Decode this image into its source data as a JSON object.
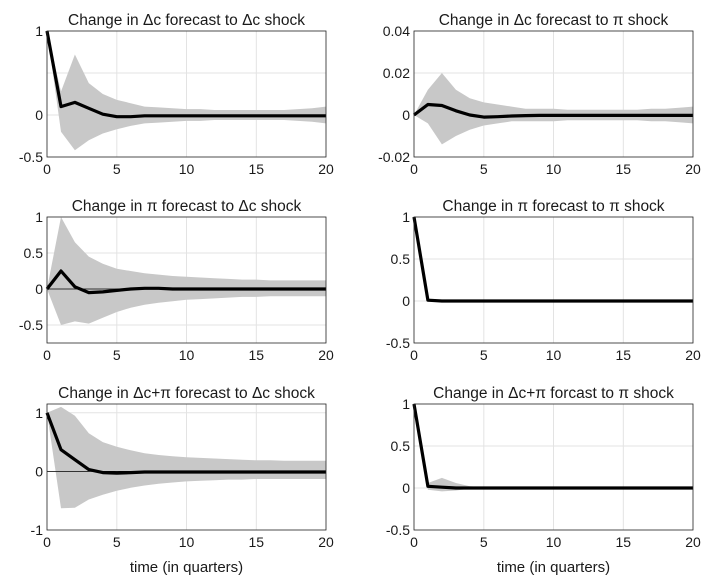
{
  "chart_data": [
    {
      "type": "line",
      "title": "Change in Δc forecast to Δc shock",
      "xlabel": "",
      "xlim": [
        0,
        20
      ],
      "ylim": [
        -0.5,
        1
      ],
      "xticks": [
        0,
        5,
        10,
        15,
        20
      ],
      "yticks": [
        -0.5,
        0,
        0.5,
        1
      ],
      "ytick_labels": [
        "-0.5",
        "0",
        "",
        "1"
      ],
      "grid": true,
      "zero_line": false,
      "x": [
        0,
        1,
        2,
        3,
        4,
        5,
        6,
        7,
        8,
        9,
        10,
        11,
        12,
        13,
        14,
        15,
        16,
        17,
        18,
        19,
        20
      ],
      "series": [
        {
          "values": [
            1.0,
            0.1,
            0.15,
            0.08,
            0.01,
            -0.02,
            -0.02,
            -0.01,
            -0.01,
            -0.01,
            -0.01,
            -0.01,
            -0.01,
            -0.01,
            -0.01,
            -0.01,
            -0.01,
            -0.01,
            -0.01,
            -0.01,
            -0.01
          ]
        }
      ],
      "band": {
        "upper": [
          1.0,
          0.28,
          0.72,
          0.38,
          0.25,
          0.18,
          0.14,
          0.1,
          0.09,
          0.08,
          0.07,
          0.07,
          0.06,
          0.06,
          0.06,
          0.06,
          0.06,
          0.06,
          0.07,
          0.08,
          0.1
        ],
        "lower": [
          1.0,
          -0.2,
          -0.42,
          -0.3,
          -0.22,
          -0.17,
          -0.13,
          -0.1,
          -0.09,
          -0.08,
          -0.07,
          -0.07,
          -0.06,
          -0.06,
          -0.06,
          -0.06,
          -0.06,
          -0.06,
          -0.07,
          -0.08,
          -0.1
        ]
      }
    },
    {
      "type": "line",
      "title": "Change in Δc forecast to π shock",
      "xlabel": "",
      "xlim": [
        0,
        20
      ],
      "ylim": [
        -0.02,
        0.04
      ],
      "xticks": [
        0,
        5,
        10,
        15,
        20
      ],
      "yticks": [
        -0.02,
        0,
        0.02,
        0.04
      ],
      "ytick_labels": [
        "-0.02",
        "0",
        "0.02",
        "0.04"
      ],
      "grid": true,
      "zero_line": false,
      "x": [
        0,
        1,
        2,
        3,
        4,
        5,
        6,
        7,
        8,
        9,
        10,
        11,
        12,
        13,
        14,
        15,
        16,
        17,
        18,
        19,
        20
      ],
      "series": [
        {
          "values": [
            0.0,
            0.005,
            0.0045,
            0.002,
            0.0,
            -0.001,
            -0.0008,
            -0.0005,
            -0.0003,
            -0.0002,
            -0.0002,
            -0.0002,
            -0.0002,
            -0.0002,
            -0.0002,
            -0.0002,
            -0.0002,
            -0.0002,
            -0.0002,
            -0.0002,
            -0.0002
          ]
        }
      ],
      "band": {
        "upper": [
          0.0,
          0.012,
          0.02,
          0.012,
          0.008,
          0.006,
          0.005,
          0.004,
          0.003,
          0.003,
          0.003,
          0.0025,
          0.0025,
          0.0025,
          0.0025,
          0.0025,
          0.0025,
          0.003,
          0.003,
          0.0035,
          0.004
        ],
        "lower": [
          0.0,
          -0.004,
          -0.014,
          -0.01,
          -0.007,
          -0.005,
          -0.004,
          -0.003,
          -0.003,
          -0.003,
          -0.003,
          -0.0025,
          -0.0025,
          -0.0025,
          -0.0025,
          -0.0025,
          -0.0025,
          -0.003,
          -0.003,
          -0.0035,
          -0.004
        ]
      }
    },
    {
      "type": "line",
      "title": "Change in π forecast to Δc shock",
      "xlabel": "",
      "xlim": [
        0,
        20
      ],
      "ylim": [
        -0.75,
        1
      ],
      "xticks": [
        0,
        5,
        10,
        15,
        20
      ],
      "yticks": [
        -0.5,
        0,
        0.5,
        1
      ],
      "ytick_labels": [
        "-0.5",
        "0",
        "0.5",
        "1"
      ],
      "grid": true,
      "zero_line": true,
      "x": [
        0,
        1,
        2,
        3,
        4,
        5,
        6,
        7,
        8,
        9,
        10,
        11,
        12,
        13,
        14,
        15,
        16,
        17,
        18,
        19,
        20
      ],
      "series": [
        {
          "values": [
            0.0,
            0.25,
            0.03,
            -0.05,
            -0.04,
            -0.02,
            0.0,
            0.01,
            0.01,
            0.0,
            0.0,
            0.0,
            0.0,
            0.0,
            0.0,
            0.0,
            0.0,
            0.0,
            0.0,
            0.0,
            0.0
          ]
        }
      ],
      "band": {
        "upper": [
          0.0,
          1.0,
          0.65,
          0.45,
          0.35,
          0.28,
          0.25,
          0.22,
          0.2,
          0.18,
          0.17,
          0.16,
          0.15,
          0.14,
          0.13,
          0.13,
          0.12,
          0.12,
          0.12,
          0.12,
          0.12
        ],
        "lower": [
          0.0,
          -0.5,
          -0.45,
          -0.48,
          -0.4,
          -0.32,
          -0.26,
          -0.22,
          -0.19,
          -0.17,
          -0.15,
          -0.14,
          -0.13,
          -0.12,
          -0.11,
          -0.11,
          -0.1,
          -0.1,
          -0.1,
          -0.1,
          -0.1
        ]
      }
    },
    {
      "type": "line",
      "title": "Change in π forecast to π shock",
      "xlabel": "",
      "xlim": [
        0,
        20
      ],
      "ylim": [
        -0.5,
        1
      ],
      "xticks": [
        0,
        5,
        10,
        15,
        20
      ],
      "yticks": [
        -0.5,
        0,
        0.5,
        1
      ],
      "ytick_labels": [
        "-0.5",
        "0",
        "0.5",
        "1"
      ],
      "grid": true,
      "zero_line": false,
      "x": [
        0,
        1,
        2,
        3,
        4,
        5,
        6,
        7,
        8,
        9,
        10,
        11,
        12,
        13,
        14,
        15,
        16,
        17,
        18,
        19,
        20
      ],
      "series": [
        {
          "values": [
            1.0,
            0.01,
            0.0,
            0.0,
            0.0,
            0.0,
            0.0,
            0.0,
            0.0,
            0.0,
            0.0,
            0.0,
            0.0,
            0.0,
            0.0,
            0.0,
            0.0,
            0.0,
            0.0,
            0.0,
            0.0
          ]
        }
      ],
      "band": {
        "upper": [
          1.0,
          0.02,
          0.01,
          0.01,
          0.005,
          0.005,
          0.005,
          0.005,
          0.005,
          0.005,
          0.005,
          0.005,
          0.005,
          0.005,
          0.005,
          0.005,
          0.005,
          0.005,
          0.005,
          0.005,
          0.005
        ],
        "lower": [
          1.0,
          -0.01,
          -0.01,
          -0.01,
          -0.005,
          -0.005,
          -0.005,
          -0.005,
          -0.005,
          -0.005,
          -0.005,
          -0.005,
          -0.005,
          -0.005,
          -0.005,
          -0.005,
          -0.005,
          -0.005,
          -0.005,
          -0.005,
          -0.005
        ]
      }
    },
    {
      "type": "line",
      "title": "Change in Δc+π forecast to Δc shock",
      "xlabel": "time (in quarters)",
      "xlim": [
        0,
        20
      ],
      "ylim": [
        -1,
        1.15
      ],
      "xticks": [
        0,
        5,
        10,
        15,
        20
      ],
      "yticks": [
        -1,
        0,
        1
      ],
      "ytick_labels": [
        "-1",
        "0",
        "1"
      ],
      "grid": true,
      "zero_line": true,
      "x": [
        0,
        1,
        2,
        3,
        4,
        5,
        6,
        7,
        8,
        9,
        10,
        11,
        12,
        13,
        14,
        15,
        16,
        17,
        18,
        19,
        20
      ],
      "series": [
        {
          "values": [
            1.0,
            0.37,
            0.2,
            0.03,
            -0.02,
            -0.03,
            -0.02,
            -0.01,
            -0.01,
            -0.01,
            -0.01,
            -0.01,
            -0.01,
            -0.01,
            -0.01,
            -0.01,
            -0.01,
            -0.01,
            -0.01,
            -0.01,
            -0.01
          ]
        }
      ],
      "band": {
        "upper": [
          1.0,
          1.1,
          0.95,
          0.65,
          0.5,
          0.42,
          0.36,
          0.31,
          0.28,
          0.26,
          0.24,
          0.23,
          0.22,
          0.21,
          0.2,
          0.19,
          0.19,
          0.18,
          0.18,
          0.18,
          0.18
        ],
        "lower": [
          1.0,
          -0.63,
          -0.62,
          -0.48,
          -0.4,
          -0.33,
          -0.28,
          -0.24,
          -0.21,
          -0.19,
          -0.17,
          -0.16,
          -0.15,
          -0.14,
          -0.14,
          -0.13,
          -0.13,
          -0.13,
          -0.13,
          -0.13,
          -0.13
        ]
      }
    },
    {
      "type": "line",
      "title": "Change in Δc+π forcast to π shock",
      "xlabel": "time (in quarters)",
      "xlim": [
        0,
        20
      ],
      "ylim": [
        -0.5,
        1
      ],
      "xticks": [
        0,
        5,
        10,
        15,
        20
      ],
      "yticks": [
        -0.5,
        0,
        0.5,
        1
      ],
      "ytick_labels": [
        "-0.5",
        "0",
        "0.5",
        "1"
      ],
      "grid": true,
      "zero_line": false,
      "x": [
        0,
        1,
        2,
        3,
        4,
        5,
        6,
        7,
        8,
        9,
        10,
        11,
        12,
        13,
        14,
        15,
        16,
        17,
        18,
        19,
        20
      ],
      "series": [
        {
          "values": [
            1.0,
            0.02,
            0.01,
            0.0,
            0.0,
            0.0,
            0.0,
            0.0,
            0.0,
            0.0,
            0.0,
            0.0,
            0.0,
            0.0,
            0.0,
            0.0,
            0.0,
            0.0,
            0.0,
            0.0,
            0.0
          ]
        }
      ],
      "band": {
        "upper": [
          1.0,
          0.06,
          0.12,
          0.06,
          0.02,
          0.01,
          0.01,
          0.01,
          0.01,
          0.01,
          0.01,
          0.01,
          0.01,
          0.01,
          0.01,
          0.01,
          0.01,
          0.01,
          0.01,
          0.01,
          0.01
        ],
        "lower": [
          1.0,
          -0.02,
          -0.04,
          -0.03,
          -0.01,
          -0.01,
          -0.01,
          -0.01,
          -0.01,
          -0.01,
          -0.01,
          -0.01,
          -0.01,
          -0.01,
          -0.01,
          -0.01,
          -0.01,
          -0.01,
          -0.01,
          -0.01,
          -0.01
        ]
      }
    }
  ],
  "colors": {
    "line": "#000000",
    "band": "#c8c8c8",
    "grid": "#e3e3e3",
    "axis": "#262626"
  }
}
